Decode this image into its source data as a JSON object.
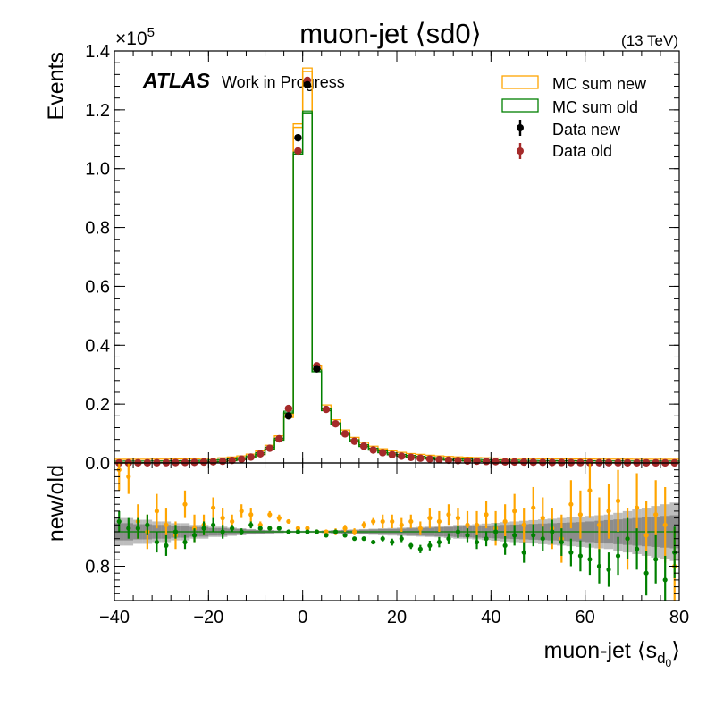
{
  "figure": {
    "title": "muon-jet ⟨sd0⟩",
    "energy": "(13 TeV)",
    "atlas": "ATLAS",
    "atlas_sub": "Work in Progress",
    "exponent_base": "×10",
    "exponent_power": "5"
  },
  "colors": {
    "mc_new": "#ffa500",
    "mc_old": "#008000",
    "data_new": "#000000",
    "data_old": "#a52a2a",
    "ratio_new": "#ffa500",
    "ratio_old": "#008000",
    "band_light": "#bdbdbd",
    "band_dark": "#8c8c8c"
  },
  "chart_data": [
    {
      "type": "histogram",
      "panel": "main",
      "ylabel": "Events",
      "xlim": [
        -40,
        80
      ],
      "ylim": [
        0,
        1.4
      ],
      "y_unit_scale": 100000,
      "yticks": [
        0.0,
        0.2,
        0.4,
        0.6,
        0.8,
        1.0,
        1.2,
        1.4
      ],
      "ytick_labels": [
        "0.0",
        "0.2",
        "0.4",
        "0.6",
        "0.8",
        "1.0",
        "1.2",
        "1.4"
      ],
      "legend": [
        "MC sum new",
        "MC sum old",
        "Data new",
        "Data old"
      ],
      "legend_position": "top-right",
      "bin_edges": [
        -40,
        -38,
        -36,
        -34,
        -32,
        -30,
        -28,
        -26,
        -24,
        -22,
        -20,
        -18,
        -16,
        -14,
        -12,
        -10,
        -8,
        -6,
        -4,
        -2,
        0,
        2,
        4,
        6,
        8,
        10,
        12,
        14,
        16,
        18,
        20,
        22,
        24,
        26,
        28,
        30,
        32,
        34,
        36,
        38,
        40,
        42,
        44,
        46,
        48,
        50,
        52,
        54,
        56,
        58,
        60,
        62,
        64,
        66,
        68,
        70,
        72,
        74,
        76,
        78,
        80
      ],
      "series": [
        {
          "name": "MC sum new",
          "style": "step",
          "values": [
            0.0003,
            0.0004,
            0.0005,
            0.0006,
            0.0008,
            0.001,
            0.0013,
            0.0017,
            0.0022,
            0.003,
            0.004,
            0.0055,
            0.008,
            0.012,
            0.018,
            0.029,
            0.048,
            0.08,
            0.155,
            1.14,
            1.33,
            0.32,
            0.185,
            0.135,
            0.1,
            0.075,
            0.058,
            0.045,
            0.036,
            0.029,
            0.024,
            0.02,
            0.017,
            0.014,
            0.012,
            0.01,
            0.0085,
            0.0072,
            0.0062,
            0.0053,
            0.0046,
            0.004,
            0.0035,
            0.003,
            0.0026,
            0.0023,
            0.002,
            0.0017,
            0.0015,
            0.0013,
            0.0012,
            0.001,
            0.0009,
            0.0008,
            0.0007,
            0.0006,
            0.0005,
            0.00045,
            0.0004,
            0.00035
          ]
        },
        {
          "name": "MC sum old",
          "style": "step",
          "values": [
            0.0003,
            0.0004,
            0.0005,
            0.0006,
            0.0008,
            0.001,
            0.0013,
            0.0017,
            0.0022,
            0.003,
            0.004,
            0.0055,
            0.0078,
            0.0118,
            0.0178,
            0.0288,
            0.0475,
            0.078,
            0.17,
            1.05,
            1.19,
            0.31,
            0.178,
            0.13,
            0.097,
            0.073,
            0.056,
            0.044,
            0.035,
            0.028,
            0.023,
            0.0195,
            0.0165,
            0.0138,
            0.0118,
            0.0098,
            0.0083,
            0.007,
            0.006,
            0.0052,
            0.0045,
            0.0039,
            0.0034,
            0.0029,
            0.0025,
            0.0022,
            0.0019,
            0.0017,
            0.0015,
            0.0013,
            0.0011,
            0.001,
            0.0009,
            0.0008,
            0.0007,
            0.0006,
            0.0005,
            0.00045,
            0.0004,
            0.00035
          ]
        },
        {
          "name": "Data new",
          "style": "points",
          "x": [
            -3,
            -1,
            1,
            3
          ],
          "values": [
            0.16,
            1.105,
            1.285,
            0.32
          ]
        },
        {
          "name": "Data old",
          "style": "points",
          "x": [
            -39,
            -37,
            -35,
            -33,
            -31,
            -29,
            -27,
            -25,
            -23,
            -21,
            -19,
            -17,
            -15,
            -13,
            -11,
            -9,
            -7,
            -5,
            -3,
            -1,
            1,
            3,
            5,
            7,
            9,
            11,
            13,
            15,
            17,
            19,
            21,
            23,
            25,
            27,
            29,
            31,
            33,
            35,
            37,
            39,
            41,
            43,
            45,
            47,
            49,
            51,
            53,
            55,
            57,
            59,
            61,
            63,
            65,
            67,
            69,
            71,
            73,
            75,
            77,
            79
          ],
          "values": [
            0.0003,
            0.0004,
            0.0005,
            0.0006,
            0.0008,
            0.001,
            0.0013,
            0.0017,
            0.0022,
            0.003,
            0.004,
            0.0055,
            0.0085,
            0.013,
            0.02,
            0.031,
            0.05,
            0.082,
            0.185,
            1.06,
            1.3,
            0.33,
            0.182,
            0.133,
            0.099,
            0.074,
            0.057,
            0.044,
            0.035,
            0.028,
            0.023,
            0.019,
            0.016,
            0.0135,
            0.0115,
            0.0095,
            0.008,
            0.0068,
            0.0058,
            0.005,
            0.0043,
            0.0037,
            0.0032,
            0.0028,
            0.0024,
            0.0021,
            0.0018,
            0.0016,
            0.0014,
            0.0012,
            0.0011,
            0.001,
            0.0009,
            0.0008,
            0.0007,
            0.0006,
            0.0005,
            0.00045,
            0.0004,
            0.00035
          ]
        }
      ]
    },
    {
      "type": "ratio",
      "panel": "ratio",
      "ylabel": "new/old",
      "xlabel": "muon-jet ⟨s",
      "xlabel_sub": "d",
      "xlabel_subsub": "0",
      "xlabel_end": "⟩",
      "xlim": [
        -40,
        80
      ],
      "ylim": [
        0.7,
        1.1
      ],
      "xticks": [
        -40,
        -20,
        0,
        20,
        40,
        60,
        80
      ],
      "xtick_labels": [
        "−40",
        "−20",
        "0",
        "20",
        "40",
        "60",
        "80"
      ],
      "yticks": [
        0.8
      ],
      "ytick_labels": [
        "0.8"
      ],
      "reference": 0.9,
      "x": [
        -39,
        -37,
        -35,
        -33,
        -31,
        -29,
        -27,
        -25,
        -23,
        -21,
        -19,
        -17,
        -15,
        -13,
        -11,
        -9,
        -7,
        -5,
        -3,
        -1,
        1,
        3,
        5,
        7,
        9,
        11,
        13,
        15,
        17,
        19,
        21,
        23,
        25,
        27,
        29,
        31,
        33,
        35,
        37,
        39,
        41,
        43,
        45,
        47,
        49,
        51,
        53,
        55,
        57,
        59,
        61,
        63,
        65,
        67,
        69,
        71,
        73,
        75,
        77,
        79
      ],
      "series": [
        {
          "name": "ratio new",
          "values": [
            1.08,
            1.06,
            0.93,
            0.9,
            0.96,
            0.92,
            0.89,
            0.98,
            0.91,
            0.92,
            0.97,
            0.94,
            0.93,
            0.96,
            0.95,
            0.92,
            0.95,
            0.94,
            0.93,
            0.91,
            0.91,
            0.9,
            0.9,
            0.9,
            0.91,
            0.9,
            0.92,
            0.93,
            0.93,
            0.93,
            0.92,
            0.93,
            0.91,
            0.94,
            0.93,
            0.95,
            0.94,
            0.92,
            0.92,
            0.95,
            0.91,
            0.93,
            0.96,
            0.92,
            0.97,
            0.94,
            0.91,
            0.88,
            0.98,
            0.95,
            1.02,
            0.92,
            0.96,
            0.99,
            0.88,
            0.97,
            0.89,
            0.95,
            0.92,
            0.8
          ],
          "errors": [
            0.06,
            0.05,
            0.05,
            0.05,
            0.05,
            0.05,
            0.04,
            0.04,
            0.04,
            0.03,
            0.03,
            0.03,
            0.02,
            0.02,
            0.02,
            0.01,
            0.01,
            0.01,
            0.005,
            0.005,
            0.005,
            0.005,
            0.005,
            0.01,
            0.01,
            0.01,
            0.01,
            0.01,
            0.02,
            0.02,
            0.02,
            0.02,
            0.02,
            0.03,
            0.03,
            0.03,
            0.03,
            0.04,
            0.04,
            0.04,
            0.05,
            0.05,
            0.05,
            0.05,
            0.06,
            0.06,
            0.06,
            0.07,
            0.07,
            0.07,
            0.08,
            0.08,
            0.08,
            0.09,
            0.09,
            0.1,
            0.1,
            0.1,
            0.11,
            0.11
          ]
        },
        {
          "name": "ratio old",
          "values": [
            0.93,
            0.91,
            0.91,
            0.92,
            0.87,
            0.86,
            0.9,
            0.87,
            0.89,
            0.91,
            0.92,
            0.9,
            0.91,
            0.9,
            0.92,
            0.91,
            0.91,
            0.91,
            0.9,
            0.9,
            0.9,
            0.9,
            0.89,
            0.9,
            0.89,
            0.88,
            0.88,
            0.87,
            0.88,
            0.87,
            0.88,
            0.86,
            0.85,
            0.86,
            0.87,
            0.88,
            0.9,
            0.89,
            0.87,
            0.88,
            0.9,
            0.86,
            0.89,
            0.84,
            0.89,
            0.88,
            0.9,
            0.87,
            0.84,
            0.83,
            0.82,
            0.8,
            0.79,
            0.83,
            0.88,
            0.85,
            0.78,
            0.82,
            0.76,
            0.84
          ],
          "errors": [
            0.03,
            0.03,
            0.03,
            0.03,
            0.03,
            0.03,
            0.02,
            0.02,
            0.02,
            0.02,
            0.02,
            0.02,
            0.01,
            0.01,
            0.01,
            0.005,
            0.005,
            0.005,
            0.003,
            0.003,
            0.003,
            0.003,
            0.003,
            0.005,
            0.005,
            0.005,
            0.006,
            0.006,
            0.008,
            0.01,
            0.01,
            0.01,
            0.012,
            0.014,
            0.015,
            0.016,
            0.018,
            0.02,
            0.02,
            0.022,
            0.025,
            0.027,
            0.03,
            0.03,
            0.032,
            0.035,
            0.035,
            0.04,
            0.04,
            0.045,
            0.045,
            0.05,
            0.05,
            0.055,
            0.06,
            0.06,
            0.065,
            0.07,
            0.07,
            0.075
          ]
        },
        {
          "name": "uncertainty light",
          "values": [
            0.04,
            0.04,
            0.035,
            0.035,
            0.03,
            0.03,
            0.025,
            0.025,
            0.02,
            0.02,
            0.015,
            0.015,
            0.012,
            0.01,
            0.008,
            0.006,
            0.005,
            0.004,
            0.003,
            0.003,
            0.003,
            0.003,
            0.004,
            0.005,
            0.006,
            0.007,
            0.008,
            0.009,
            0.01,
            0.011,
            0.012,
            0.013,
            0.014,
            0.015,
            0.016,
            0.018,
            0.02,
            0.02,
            0.022,
            0.024,
            0.026,
            0.028,
            0.03,
            0.032,
            0.034,
            0.036,
            0.038,
            0.04,
            0.042,
            0.044,
            0.046,
            0.048,
            0.05,
            0.055,
            0.06,
            0.065,
            0.07,
            0.075,
            0.08,
            0.085
          ]
        },
        {
          "name": "uncertainty dark",
          "values": [
            0.025,
            0.025,
            0.022,
            0.022,
            0.02,
            0.02,
            0.017,
            0.017,
            0.014,
            0.014,
            0.011,
            0.011,
            0.009,
            0.008,
            0.006,
            0.005,
            0.004,
            0.003,
            0.002,
            0.002,
            0.002,
            0.002,
            0.003,
            0.004,
            0.005,
            0.005,
            0.006,
            0.007,
            0.008,
            0.008,
            0.009,
            0.01,
            0.011,
            0.012,
            0.013,
            0.014,
            0.015,
            0.016,
            0.017,
            0.018,
            0.019,
            0.02,
            0.021,
            0.022,
            0.023,
            0.024,
            0.025,
            0.026,
            0.027,
            0.028,
            0.03,
            0.032,
            0.034,
            0.036,
            0.038,
            0.04,
            0.042,
            0.044,
            0.046,
            0.048
          ]
        }
      ]
    }
  ]
}
